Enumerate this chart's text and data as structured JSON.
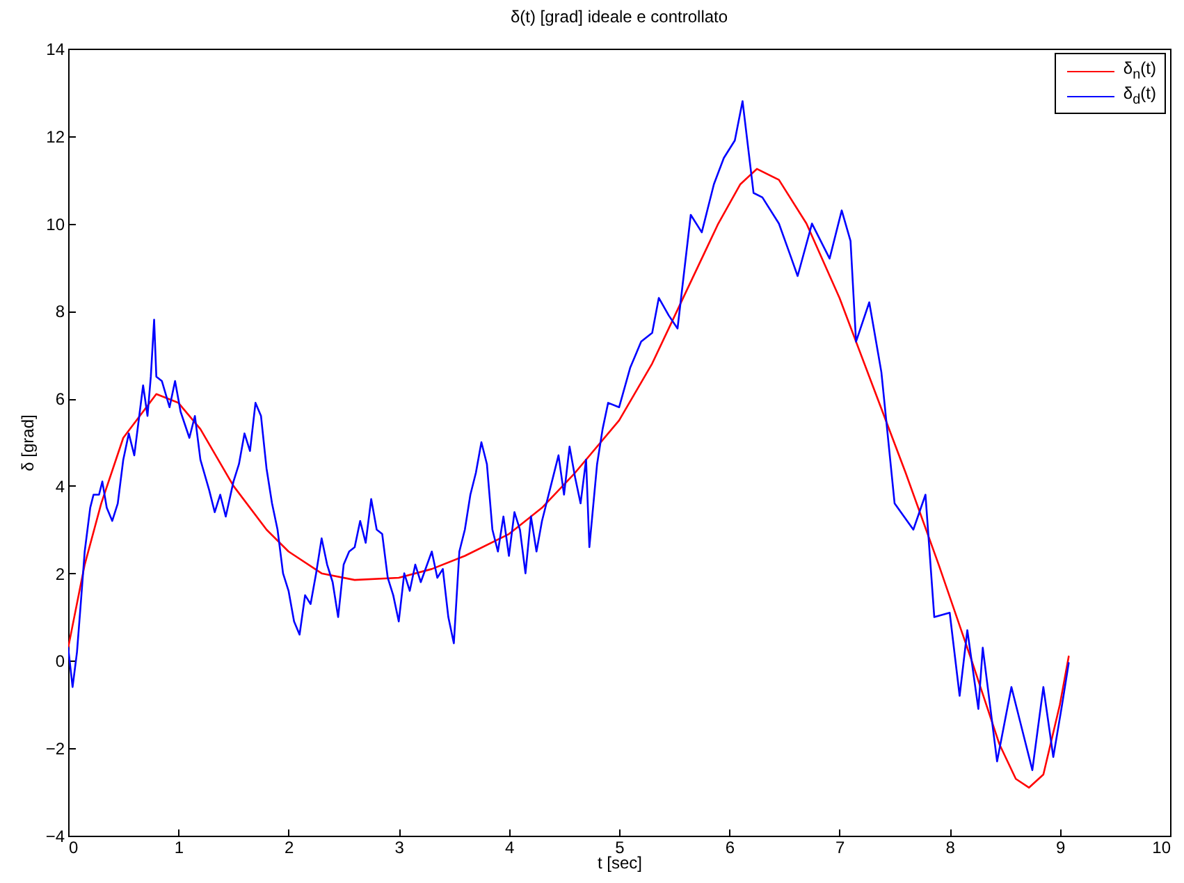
{
  "chart_data": {
    "type": "line",
    "title": "δ(t) [grad] ideale e controllato",
    "xlabel": "t [sec]",
    "ylabel": "δ [grad]",
    "xlim": [
      0,
      10
    ],
    "xticks": [
      0,
      1,
      2,
      3,
      4,
      5,
      6,
      7,
      8,
      9,
      10
    ],
    "ylim": [
      -4,
      14
    ],
    "yticks": [
      -4,
      -2,
      0,
      2,
      4,
      6,
      8,
      10,
      12,
      14
    ],
    "grid": false,
    "legend": "top right",
    "line_style": "solid",
    "marker": "none",
    "series": [
      {
        "name": "δ$_{n}$(t)",
        "color": "#ff0000",
        "x": [
          0,
          0.15,
          0.3,
          0.5,
          0.8,
          1.0,
          1.2,
          1.5,
          1.8,
          2.0,
          2.3,
          2.6,
          3.0,
          3.3,
          3.6,
          4.0,
          4.3,
          4.6,
          5.0,
          5.3,
          5.6,
          5.9,
          6.1,
          6.25,
          6.45,
          6.7,
          7.0,
          7.3,
          7.6,
          7.9,
          8.2,
          8.45,
          8.6,
          8.72,
          8.85,
          9.0,
          9.08
        ],
        "values": [
          0.3,
          2.2,
          3.6,
          5.1,
          6.1,
          5.9,
          5.3,
          4.0,
          3.0,
          2.5,
          2.0,
          1.85,
          1.9,
          2.1,
          2.4,
          2.9,
          3.5,
          4.3,
          5.5,
          6.8,
          8.4,
          10.0,
          10.9,
          11.25,
          11.0,
          10.0,
          8.3,
          6.3,
          4.3,
          2.2,
          0.0,
          -1.9,
          -2.7,
          -2.9,
          -2.6,
          -1.0,
          0.1
        ]
      },
      {
        "name": "δ$_{d}$(t)",
        "color": "#0000ff",
        "x": [
          0,
          0.04,
          0.08,
          0.12,
          0.15,
          0.2,
          0.23,
          0.28,
          0.31,
          0.35,
          0.4,
          0.45,
          0.5,
          0.55,
          0.6,
          0.65,
          0.68,
          0.72,
          0.75,
          0.78,
          0.8,
          0.85,
          0.92,
          0.97,
          1.02,
          1.1,
          1.15,
          1.2,
          1.28,
          1.33,
          1.38,
          1.43,
          1.5,
          1.55,
          1.6,
          1.65,
          1.7,
          1.75,
          1.8,
          1.85,
          1.9,
          1.95,
          2.0,
          2.05,
          2.1,
          2.15,
          2.2,
          2.25,
          2.3,
          2.35,
          2.4,
          2.45,
          2.5,
          2.55,
          2.6,
          2.65,
          2.7,
          2.75,
          2.8,
          2.85,
          2.9,
          2.95,
          3.0,
          3.05,
          3.1,
          3.15,
          3.2,
          3.3,
          3.35,
          3.4,
          3.45,
          3.5,
          3.55,
          3.6,
          3.65,
          3.7,
          3.75,
          3.8,
          3.85,
          3.9,
          3.95,
          4.0,
          4.05,
          4.1,
          4.15,
          4.2,
          4.25,
          4.3,
          4.4,
          4.45,
          4.5,
          4.55,
          4.6,
          4.65,
          4.7,
          4.73,
          4.8,
          4.85,
          4.9,
          5.0,
          5.1,
          5.2,
          5.3,
          5.36,
          5.45,
          5.53,
          5.65,
          5.75,
          5.86,
          5.95,
          6.05,
          6.12,
          6.22,
          6.3,
          6.45,
          6.55,
          6.62,
          6.75,
          6.91,
          7.02,
          7.1,
          7.15,
          7.27,
          7.38,
          7.5,
          7.67,
          7.78,
          7.86,
          8.0,
          8.09,
          8.16,
          8.26,
          8.3,
          8.43,
          8.56,
          8.64,
          8.75,
          8.85,
          8.94,
          9.02,
          9.08
        ],
        "values": [
          0.3,
          -0.6,
          0.2,
          1.5,
          2.5,
          3.5,
          3.8,
          3.8,
          4.1,
          3.5,
          3.2,
          3.6,
          4.6,
          5.2,
          4.7,
          5.7,
          6.3,
          5.6,
          6.5,
          7.8,
          6.5,
          6.4,
          5.8,
          6.4,
          5.7,
          5.1,
          5.6,
          4.6,
          3.9,
          3.4,
          3.8,
          3.3,
          4.1,
          4.5,
          5.2,
          4.8,
          5.9,
          5.6,
          4.4,
          3.6,
          3.0,
          2.0,
          1.6,
          0.9,
          0.6,
          1.5,
          1.3,
          2.0,
          2.8,
          2.2,
          1.8,
          1.0,
          2.2,
          2.5,
          2.6,
          3.2,
          2.7,
          3.7,
          3.0,
          2.9,
          1.9,
          1.5,
          0.9,
          2.0,
          1.6,
          2.2,
          1.8,
          2.5,
          1.9,
          2.1,
          1.0,
          0.4,
          2.5,
          3.0,
          3.8,
          4.3,
          5.0,
          4.5,
          3.0,
          2.5,
          3.3,
          2.4,
          3.4,
          3.0,
          2.0,
          3.3,
          2.5,
          3.2,
          4.2,
          4.7,
          3.8,
          4.9,
          4.2,
          3.6,
          4.6,
          2.6,
          4.5,
          5.3,
          5.9,
          5.8,
          6.7,
          7.3,
          7.5,
          8.3,
          7.9,
          7.6,
          10.2,
          9.8,
          10.9,
          11.5,
          11.9,
          12.8,
          10.7,
          10.6,
          10.0,
          9.3,
          8.8,
          10.0,
          9.2,
          10.3,
          9.6,
          7.3,
          8.2,
          6.6,
          3.6,
          3.0,
          3.8,
          1.0,
          1.1,
          -0.8,
          0.7,
          -1.1,
          0.3,
          -2.3,
          -0.6,
          -1.4,
          -2.5,
          -0.6,
          -2.2,
          -1.0,
          -0.05
        ]
      }
    ]
  }
}
